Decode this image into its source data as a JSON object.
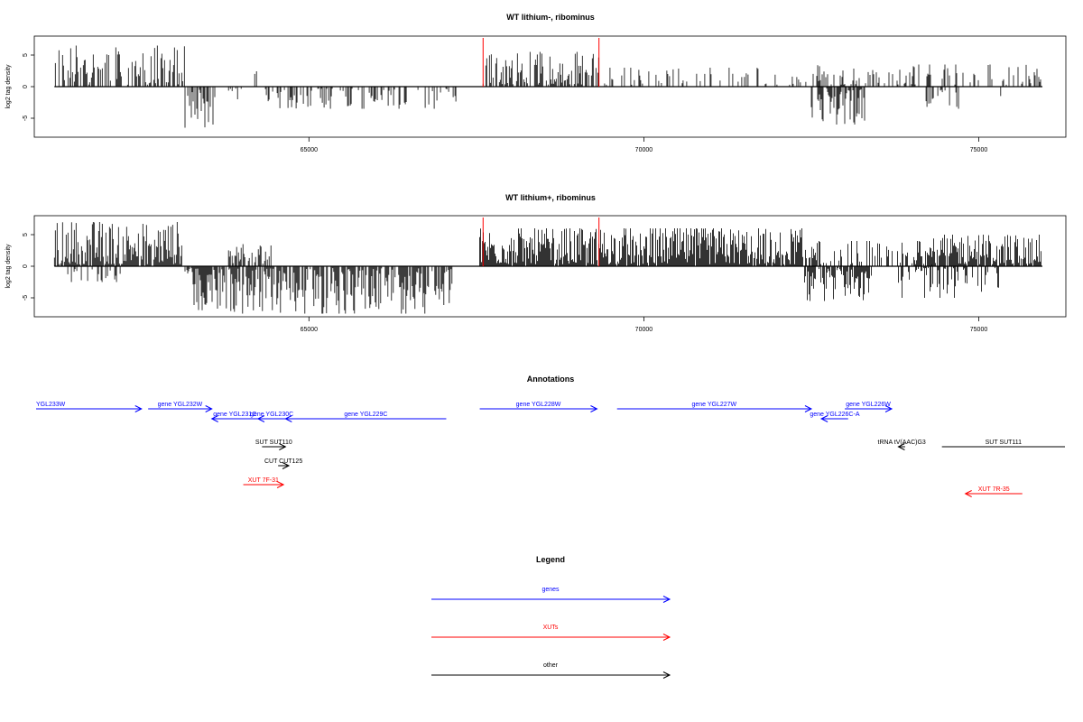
{
  "chart_data": [
    {
      "type": "bar",
      "title": "WT lithium-, ribominus",
      "ylabel": "log2 tag density",
      "xlim": [
        60900,
        76300
      ],
      "ylim": [
        -8,
        8
      ],
      "x_ticks": [
        65000,
        70000,
        75000
      ],
      "y_ticks": [
        5,
        0,
        -5
      ],
      "data_range": [
        61200,
        75950
      ],
      "markers": [
        67600,
        69330
      ],
      "marker_color": "#ff0000",
      "positive_segments": [
        {
          "from": 61200,
          "to": 63150,
          "max": 6.5,
          "density": 0.55
        },
        {
          "from": 64150,
          "to": 64250,
          "max": 3,
          "density": 0.5
        },
        {
          "from": 67600,
          "to": 69330,
          "max": 5.5,
          "density": 0.7
        },
        {
          "from": 69400,
          "to": 72500,
          "max": 3,
          "density": 0.25
        },
        {
          "from": 72500,
          "to": 75950,
          "max": 3.5,
          "density": 0.3
        }
      ],
      "negative_segments": [
        {
          "from": 63150,
          "to": 63600,
          "min": -6.5,
          "density": 0.7
        },
        {
          "from": 63800,
          "to": 64000,
          "min": -2,
          "density": 0.4
        },
        {
          "from": 64350,
          "to": 67200,
          "min": -3.5,
          "density": 0.35
        },
        {
          "from": 72500,
          "to": 73300,
          "min": -6,
          "density": 0.7
        },
        {
          "from": 74200,
          "to": 74700,
          "min": -3.5,
          "density": 0.3
        },
        {
          "from": 75300,
          "to": 75400,
          "min": -3.5,
          "density": 0.4
        }
      ]
    },
    {
      "type": "bar",
      "title": "WT lithium+, ribominus",
      "ylabel": "log2 tag density",
      "xlim": [
        60900,
        76300
      ],
      "ylim": [
        -8,
        8
      ],
      "x_ticks": [
        65000,
        70000,
        75000
      ],
      "y_ticks": [
        5,
        0,
        -5
      ],
      "data_range": [
        61200,
        75950
      ],
      "markers": [
        67600,
        69330
      ],
      "marker_color": "#ff0000",
      "positive_segments": [
        {
          "from": 61200,
          "to": 63100,
          "max": 7,
          "density": 0.9
        },
        {
          "from": 63800,
          "to": 64450,
          "max": 3.5,
          "density": 0.5
        },
        {
          "from": 67550,
          "to": 72400,
          "max": 6,
          "density": 0.95
        },
        {
          "from": 72400,
          "to": 74300,
          "max": 4,
          "density": 0.5
        },
        {
          "from": 74300,
          "to": 75950,
          "max": 5,
          "density": 0.85
        }
      ],
      "negative_segments": [
        {
          "from": 61400,
          "to": 62200,
          "min": -2.5,
          "density": 0.25
        },
        {
          "from": 63150,
          "to": 63700,
          "min": -7,
          "density": 0.85
        },
        {
          "from": 63700,
          "to": 67150,
          "min": -7.5,
          "density": 0.8
        },
        {
          "from": 72400,
          "to": 73400,
          "min": -5.5,
          "density": 0.8
        },
        {
          "from": 73800,
          "to": 75300,
          "min": -5,
          "density": 0.45
        }
      ]
    }
  ],
  "annotations": {
    "title": "Annotations",
    "colors": {
      "genes": "#0000ff",
      "XUTs": "#ff0000",
      "other": "#000000"
    },
    "features": [
      {
        "label": "YGL233W",
        "category": "genes",
        "from": 60900,
        "to": 62500,
        "strand": "+",
        "row": 0
      },
      {
        "label": "gene YGL232W",
        "category": "genes",
        "from": 62600,
        "to": 63550,
        "strand": "+",
        "row": 0
      },
      {
        "label": "gene YGL231C",
        "category": "genes",
        "from": 63550,
        "to": 64240,
        "strand": "-",
        "row": 1
      },
      {
        "label": "gene YGL230C",
        "category": "genes",
        "from": 64240,
        "to": 64650,
        "strand": "-",
        "row": 1
      },
      {
        "label": "gene YGL229C",
        "category": "genes",
        "from": 64650,
        "to": 67050,
        "strand": "-",
        "row": 1
      },
      {
        "label": "gene YGL228W",
        "category": "genes",
        "from": 67550,
        "to": 69300,
        "strand": "+",
        "row": 0
      },
      {
        "label": "gene YGL227W",
        "category": "genes",
        "from": 69600,
        "to": 72500,
        "strand": "+",
        "row": 0
      },
      {
        "label": "gene YGL226W",
        "category": "genes",
        "from": 73000,
        "to": 73700,
        "strand": "+",
        "row": 0
      },
      {
        "label": "gene YGL226C-A",
        "category": "genes",
        "from": 72650,
        "to": 73050,
        "strand": "-",
        "row": 1
      },
      {
        "label": "SUT SUT110",
        "category": "other",
        "from": 64300,
        "to": 64650,
        "strand": "+",
        "row": 2
      },
      {
        "label": "tRNA tV(AAC)G3",
        "category": "other",
        "from": 73800,
        "to": 73900,
        "strand": "-",
        "row": 2
      },
      {
        "label": "SUT SUT111",
        "category": "other",
        "from": 74450,
        "to": 76300,
        "strand": "0",
        "row": 3
      },
      {
        "label": "CUT CUT125",
        "category": "other",
        "from": 64540,
        "to": 64700,
        "strand": "+",
        "row": 4
      },
      {
        "label": "XUT 7F-31",
        "category": "XUTs",
        "from": 64020,
        "to": 64620,
        "strand": "+",
        "row": 5
      },
      {
        "label": "XUT 7R-35",
        "category": "XUTs",
        "from": 74800,
        "to": 75650,
        "strand": "-",
        "row": 6
      }
    ]
  },
  "legend": {
    "title": "Legend",
    "entries": [
      {
        "label": "genes",
        "color": "#0000ff"
      },
      {
        "label": "XUTs",
        "color": "#ff0000"
      },
      {
        "label": "other",
        "color": "#000000"
      }
    ]
  }
}
